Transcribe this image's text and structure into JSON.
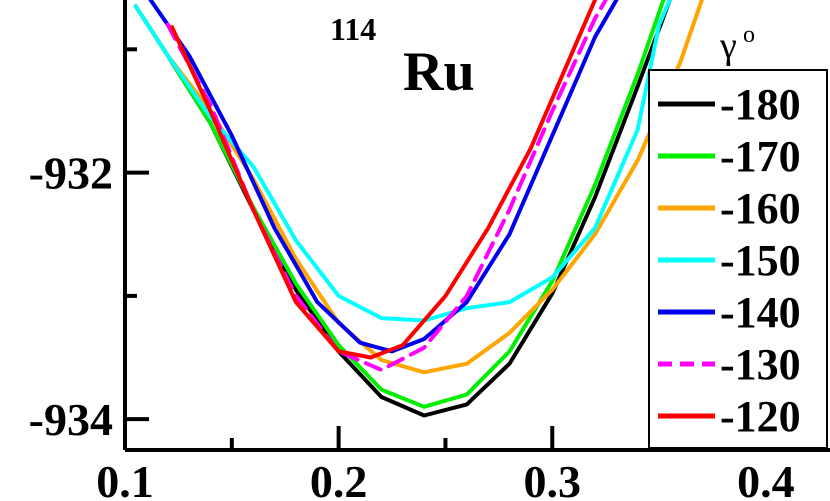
{
  "chart_data": {
    "type": "line",
    "title_sup": "114",
    "title_main": "Ru",
    "legend_title": "γ",
    "legend_title_sup": "o",
    "xlabel": "",
    "ylabel": "",
    "xlim": [
      0.1,
      0.43
    ],
    "ylim": [
      -934.25,
      -930.6
    ],
    "x_ticks": [
      0.1,
      0.2,
      0.3,
      0.4
    ],
    "x_tick_labels": [
      "0.1",
      "0.2",
      "0.3",
      "0.4"
    ],
    "x_minor_ticks": [
      0.15,
      0.25,
      0.35
    ],
    "y_ticks": [
      -932,
      -934
    ],
    "y_tick_labels": [
      "-932",
      "-934"
    ],
    "y_minor_ticks": [
      -931,
      -933
    ],
    "legend_position": "right",
    "grid": false,
    "series": [
      {
        "name": "-180",
        "color": "#000000",
        "dash": false,
        "points": [
          [
            0.105,
            -930.65
          ],
          [
            0.12,
            -931.05
          ],
          [
            0.14,
            -931.6
          ],
          [
            0.16,
            -932.3
          ],
          [
            0.18,
            -932.95
          ],
          [
            0.2,
            -933.45
          ],
          [
            0.22,
            -933.82
          ],
          [
            0.24,
            -933.97
          ],
          [
            0.26,
            -933.88
          ],
          [
            0.28,
            -933.55
          ],
          [
            0.3,
            -932.98
          ],
          [
            0.32,
            -932.2
          ],
          [
            0.34,
            -931.3
          ],
          [
            0.355,
            -930.6
          ]
        ]
      },
      {
        "name": "-170",
        "color": "#00ee00",
        "dash": false,
        "points": [
          [
            0.105,
            -930.65
          ],
          [
            0.12,
            -931.05
          ],
          [
            0.14,
            -931.6
          ],
          [
            0.16,
            -932.28
          ],
          [
            0.18,
            -932.9
          ],
          [
            0.2,
            -933.4
          ],
          [
            0.22,
            -933.76
          ],
          [
            0.24,
            -933.9
          ],
          [
            0.26,
            -933.8
          ],
          [
            0.28,
            -933.45
          ],
          [
            0.3,
            -932.88
          ],
          [
            0.32,
            -932.1
          ],
          [
            0.34,
            -931.2
          ],
          [
            0.352,
            -930.6
          ]
        ]
      },
      {
        "name": "-160",
        "color": "#ffa500",
        "dash": false,
        "points": [
          [
            0.105,
            -930.65
          ],
          [
            0.12,
            -931.05
          ],
          [
            0.14,
            -931.5
          ],
          [
            0.16,
            -932.05
          ],
          [
            0.18,
            -932.7
          ],
          [
            0.2,
            -933.22
          ],
          [
            0.22,
            -933.52
          ],
          [
            0.24,
            -933.62
          ],
          [
            0.26,
            -933.55
          ],
          [
            0.28,
            -933.3
          ],
          [
            0.3,
            -932.95
          ],
          [
            0.32,
            -932.5
          ],
          [
            0.34,
            -931.9
          ],
          [
            0.36,
            -931.1
          ],
          [
            0.37,
            -930.6
          ]
        ]
      },
      {
        "name": "-150",
        "color": "#00ffff",
        "dash": false,
        "points": [
          [
            0.105,
            -930.65
          ],
          [
            0.12,
            -931.05
          ],
          [
            0.14,
            -931.55
          ],
          [
            0.16,
            -931.95
          ],
          [
            0.18,
            -932.55
          ],
          [
            0.2,
            -933.0
          ],
          [
            0.22,
            -933.18
          ],
          [
            0.24,
            -933.2
          ],
          [
            0.26,
            -933.1
          ],
          [
            0.28,
            -933.05
          ],
          [
            0.3,
            -932.85
          ],
          [
            0.32,
            -932.45
          ],
          [
            0.34,
            -931.65
          ],
          [
            0.35,
            -930.8
          ],
          [
            0.355,
            -930.6
          ]
        ]
      },
      {
        "name": "-140",
        "color": "#0000ee",
        "dash": false,
        "points": [
          [
            0.112,
            -930.6
          ],
          [
            0.13,
            -931.05
          ],
          [
            0.15,
            -931.7
          ],
          [
            0.17,
            -932.45
          ],
          [
            0.19,
            -933.05
          ],
          [
            0.21,
            -933.38
          ],
          [
            0.225,
            -933.45
          ],
          [
            0.24,
            -933.35
          ],
          [
            0.26,
            -933.05
          ],
          [
            0.28,
            -932.5
          ],
          [
            0.3,
            -931.7
          ],
          [
            0.32,
            -930.9
          ],
          [
            0.33,
            -930.6
          ]
        ]
      },
      {
        "name": "-130",
        "color": "#ff00ff",
        "dash": true,
        "points": [
          [
            0.12,
            -930.8
          ],
          [
            0.14,
            -931.45
          ],
          [
            0.16,
            -932.3
          ],
          [
            0.18,
            -933.0
          ],
          [
            0.2,
            -933.45
          ],
          [
            0.22,
            -933.6
          ],
          [
            0.24,
            -933.42
          ],
          [
            0.26,
            -933.0
          ],
          [
            0.28,
            -932.3
          ],
          [
            0.3,
            -931.5
          ],
          [
            0.32,
            -930.75
          ],
          [
            0.325,
            -930.6
          ]
        ]
      },
      {
        "name": "-120",
        "color": "#ff0000",
        "dash": false,
        "points": [
          [
            0.122,
            -930.82
          ],
          [
            0.14,
            -931.5
          ],
          [
            0.16,
            -932.3
          ],
          [
            0.18,
            -933.05
          ],
          [
            0.2,
            -933.45
          ],
          [
            0.215,
            -933.5
          ],
          [
            0.23,
            -933.4
          ],
          [
            0.25,
            -933.0
          ],
          [
            0.27,
            -932.45
          ],
          [
            0.29,
            -931.8
          ],
          [
            0.31,
            -931.0
          ],
          [
            0.32,
            -930.6
          ]
        ]
      }
    ]
  }
}
